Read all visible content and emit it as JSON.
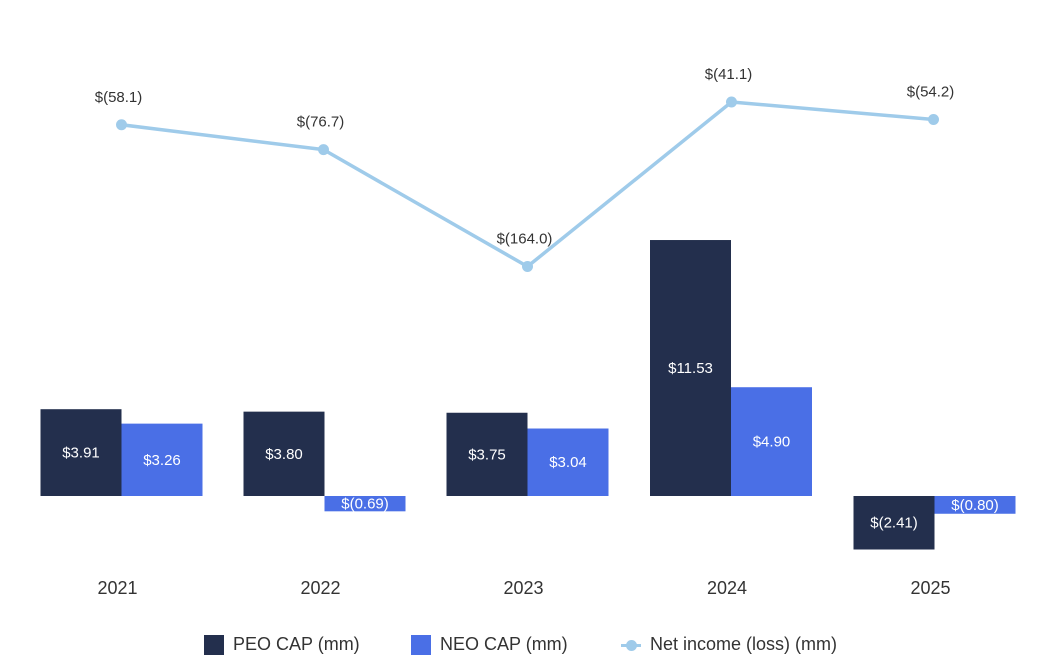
{
  "chart_data": {
    "type": "bar",
    "categories": [
      "2021",
      "2022",
      "2023",
      "2024",
      "2025"
    ],
    "series": [
      {
        "name": "PEO CAP (mm)",
        "kind": "bar",
        "color": "#232f4d",
        "values": [
          3.91,
          3.8,
          3.75,
          11.53,
          -2.41
        ],
        "labels": [
          "$3.91",
          "$3.80",
          "$3.75",
          "$11.53",
          "$(2.41)"
        ]
      },
      {
        "name": "NEO CAP (mm)",
        "kind": "bar",
        "color": "#4a6fe6",
        "values": [
          3.26,
          -0.69,
          3.04,
          4.9,
          -0.8
        ],
        "labels": [
          "$3.26",
          "$(0.69)",
          "$3.04",
          "$4.90",
          "$(0.80)"
        ]
      },
      {
        "name": "Net income (loss) (mm)",
        "kind": "line",
        "color": "#9fcbea",
        "values": [
          -58.1,
          -76.7,
          -164.0,
          -41.1,
          -54.2
        ],
        "labels": [
          "$(58.1)",
          "$(76.7)",
          "$(164.0)",
          "$(41.1)",
          "$(54.2)"
        ]
      }
    ],
    "legend_position": "bottom"
  }
}
